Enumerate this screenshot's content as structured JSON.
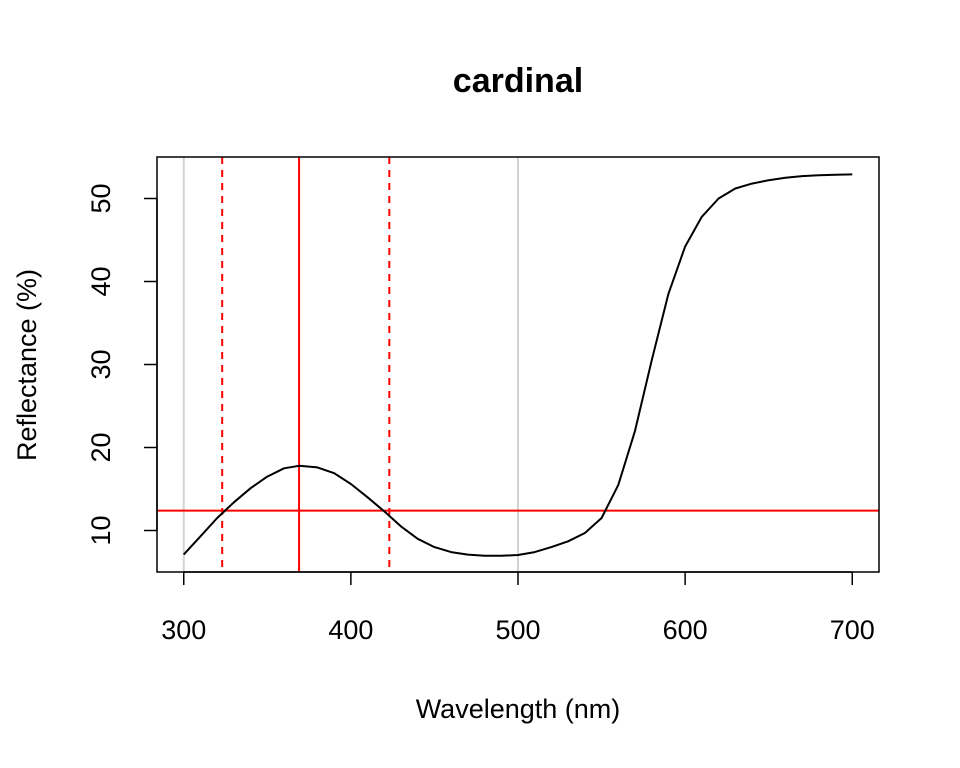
{
  "chart_data": {
    "type": "line",
    "title": "cardinal",
    "xlabel": "Wavelength (nm)",
    "ylabel": "Reflectance (%)",
    "xlim": [
      284,
      716
    ],
    "ylim": [
      5,
      55
    ],
    "x_ticks": [
      300,
      400,
      500,
      600,
      700
    ],
    "y_ticks": [
      10,
      20,
      30,
      40,
      50
    ],
    "grid_verticals": [
      300,
      500
    ],
    "grid_color": "#d3d3d3",
    "line_color": "#000000",
    "marker_color": "#ff0000",
    "peak_line_x": 369,
    "half_max_lines_x": [
      323,
      423
    ],
    "half_max_line_y": 12.4,
    "series": [
      {
        "x": [
          300,
          310,
          320,
          330,
          340,
          350,
          360,
          369,
          380,
          390,
          400,
          410,
          420,
          430,
          440,
          450,
          460,
          470,
          480,
          490,
          500,
          510,
          520,
          530,
          540,
          550,
          560,
          570,
          580,
          590,
          600,
          610,
          620,
          630,
          640,
          650,
          660,
          670,
          680,
          690,
          700
        ],
        "y": [
          7.1,
          9.3,
          11.5,
          13.4,
          15.1,
          16.5,
          17.5,
          17.8,
          17.6,
          16.9,
          15.6,
          14.0,
          12.3,
          10.5,
          9.0,
          8.0,
          7.4,
          7.1,
          6.95,
          6.95,
          7.05,
          7.4,
          8.0,
          8.7,
          9.7,
          11.5,
          15.5,
          22.0,
          30.5,
          38.5,
          44.2,
          47.8,
          50.0,
          51.2,
          51.8,
          52.2,
          52.5,
          52.7,
          52.8,
          52.85,
          52.9
        ]
      }
    ]
  }
}
